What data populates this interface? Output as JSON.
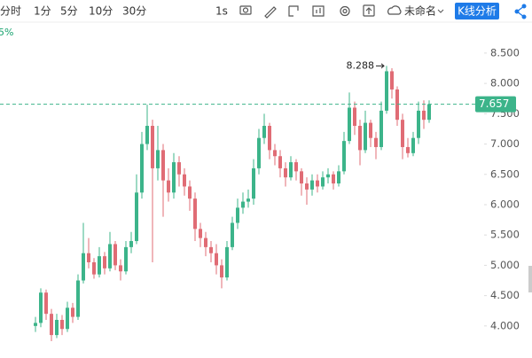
{
  "toolbar": {
    "periods": [
      "分时",
      "1分",
      "5分",
      "10分",
      "30分"
    ],
    "interval": "1s",
    "name": "未命名",
    "analysis_button": "K线分析"
  },
  "chart_data": {
    "type": "candlestick",
    "subtitle": "5%",
    "up_color": "#3cb48a",
    "down_color": "#e06c75",
    "open": [
      4.0,
      4.05,
      4.55,
      4.2,
      3.85,
      4.1,
      3.95,
      4.3,
      4.15,
      4.75,
      5.2,
      5.05,
      4.85,
      5.15,
      4.95,
      5.35,
      5.0,
      4.9,
      5.3,
      5.4,
      6.2,
      7.0,
      7.3,
      6.6,
      6.9,
      6.4,
      6.2,
      6.7,
      6.5,
      6.3,
      6.1,
      5.6,
      5.45,
      5.3,
      5.2,
      5.0,
      4.8,
      5.3,
      5.7,
      5.95,
      6.05,
      6.1,
      6.6,
      7.1,
      7.3,
      6.9,
      6.8,
      6.6,
      6.45,
      6.7,
      6.55,
      6.35,
      6.25,
      6.4,
      6.3,
      6.45,
      6.5,
      6.35,
      6.55,
      7.05,
      7.6,
      7.3,
      6.9,
      7.35,
      7.1,
      6.95,
      7.55,
      8.2,
      7.9,
      7.4,
      6.95,
      6.85,
      7.1,
      7.55,
      7.4
    ],
    "high": [
      4.15,
      4.62,
      4.6,
      4.28,
      4.2,
      4.18,
      4.4,
      4.38,
      4.85,
      5.7,
      5.45,
      5.12,
      5.3,
      5.22,
      5.55,
      5.4,
      5.1,
      5.4,
      5.55,
      6.5,
      7.2,
      7.65,
      7.4,
      7.3,
      7.0,
      6.6,
      6.85,
      6.8,
      6.6,
      6.4,
      6.2,
      5.7,
      5.55,
      5.4,
      5.35,
      5.1,
      5.4,
      5.8,
      6.1,
      6.2,
      6.25,
      6.75,
      7.25,
      7.5,
      7.35,
      7.0,
      6.9,
      6.7,
      6.8,
      6.75,
      6.6,
      6.45,
      6.5,
      6.5,
      6.55,
      6.6,
      6.55,
      6.65,
      7.2,
      7.85,
      7.7,
      7.4,
      7.55,
      7.4,
      7.2,
      7.7,
      8.288,
      8.25,
      7.95,
      7.5,
      7.1,
      7.2,
      7.7,
      7.72,
      7.72
    ],
    "low": [
      3.9,
      3.98,
      4.1,
      3.75,
      3.8,
      3.85,
      3.9,
      4.05,
      4.1,
      4.7,
      4.95,
      4.78,
      4.8,
      4.85,
      4.9,
      4.92,
      4.75,
      4.85,
      5.2,
      5.35,
      6.1,
      6.9,
      5.05,
      6.4,
      5.8,
      6.05,
      6.1,
      6.3,
      6.15,
      5.9,
      5.4,
      5.3,
      5.15,
      5.05,
      4.85,
      4.62,
      4.75,
      5.25,
      5.6,
      5.85,
      5.95,
      6.0,
      6.5,
      7.0,
      6.75,
      6.65,
      6.45,
      6.3,
      6.4,
      6.4,
      6.15,
      6.0,
      6.15,
      6.2,
      6.25,
      6.35,
      6.25,
      6.3,
      6.5,
      7.0,
      7.15,
      6.65,
      6.85,
      6.95,
      6.75,
      6.9,
      7.5,
      7.75,
      7.3,
      6.75,
      6.78,
      6.8,
      7.0,
      7.25,
      7.35
    ],
    "close": [
      4.05,
      4.55,
      4.2,
      3.85,
      4.1,
      3.95,
      4.3,
      4.15,
      4.75,
      5.2,
      5.05,
      4.85,
      5.15,
      4.95,
      5.35,
      5.0,
      4.9,
      5.3,
      5.4,
      6.2,
      7.0,
      7.3,
      6.6,
      6.9,
      6.4,
      6.2,
      6.7,
      6.5,
      6.3,
      6.1,
      5.6,
      5.45,
      5.3,
      5.2,
      5.0,
      4.8,
      5.3,
      5.7,
      5.95,
      6.05,
      6.1,
      6.6,
      7.1,
      7.3,
      6.9,
      6.8,
      6.6,
      6.45,
      6.7,
      6.55,
      6.35,
      6.25,
      6.4,
      6.3,
      6.45,
      6.5,
      6.35,
      6.55,
      7.05,
      7.6,
      7.3,
      6.9,
      7.35,
      7.1,
      6.95,
      7.55,
      8.2,
      7.9,
      7.4,
      6.95,
      6.85,
      7.1,
      7.55,
      7.4,
      7.657
    ],
    "ylim": [
      3.53,
      9.01
    ],
    "yticks": [
      {
        "value": 4,
        "label": "4.000"
      },
      {
        "value": 4.5,
        "label": "4.500"
      },
      {
        "value": 5,
        "label": "5.000"
      },
      {
        "value": 5.5,
        "label": "5.500"
      },
      {
        "value": 6,
        "label": "6.000"
      },
      {
        "value": 6.5,
        "label": "6.500"
      },
      {
        "value": 7,
        "label": "7.000"
      },
      {
        "value": 7.5,
        "label": "7.500"
      },
      {
        "value": 8,
        "label": "8.000"
      },
      {
        "value": 8.5,
        "label": "8.500"
      }
    ]
  }
}
